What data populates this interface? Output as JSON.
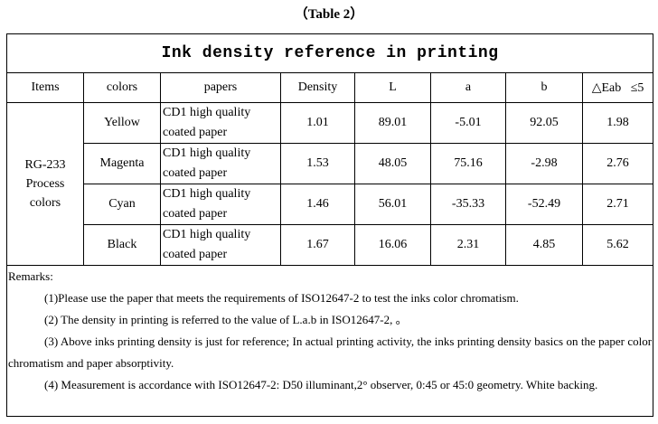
{
  "caption": "（Table 2）",
  "table": {
    "title": "Ink density reference in printing",
    "headers": [
      "Items",
      "colors",
      "papers",
      "Density",
      "L",
      "a",
      "b",
      "△Eab   ≤5"
    ],
    "item": "RG-233 Process colors",
    "rows": [
      [
        "Yellow",
        "CD1 high quality coated paper",
        "1.01",
        "89.01",
        "-5.01",
        "92.05",
        "1.98"
      ],
      [
        "Magenta",
        "CD1 high quality coated paper",
        "1.53",
        "48.05",
        "75.16",
        "-2.98",
        "2.76"
      ],
      [
        "Cyan",
        "CD1 high quality coated paper",
        "1.46",
        "56.01",
        "-35.33",
        "-52.49",
        "2.71"
      ],
      [
        "Black",
        "CD1 high quality coated paper",
        "1.67",
        "16.06",
        "2.31",
        "4.85",
        "5.62"
      ]
    ]
  },
  "remarks": {
    "heading": "Remarks:",
    "items": [
      "(1)Please use the paper that meets the requirements of ISO12647-2 to test the inks color chromatism.",
      "(2) The density in printing is referred to the value of L.a.b in ISO12647-2,  。",
      "(3) Above inks printing density is just for reference; In actual printing activity, the inks printing density basics on the paper color chromatism and paper absorptivity.",
      "(4) Measurement is accordance with ISO12647-2: D50 illuminant,2° observer, 0:45 or 45:0 geometry. White backing."
    ]
  }
}
